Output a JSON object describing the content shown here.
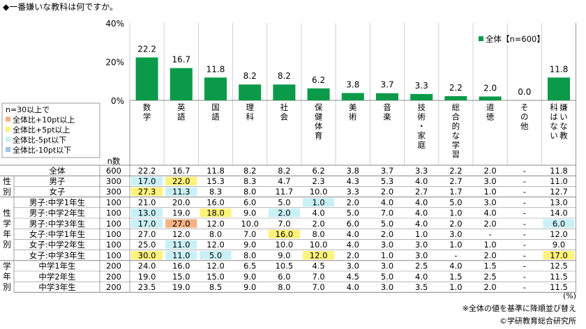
{
  "title": "◆一番嫌いな教科は何ですか。",
  "legend_label": "全体【n=600】",
  "chart_data": {
    "type": "bar",
    "title": "◆一番嫌いな教科は何ですか。",
    "categories": [
      "数学",
      "英語",
      "国語",
      "理科",
      "社会",
      "保健体育",
      "美術",
      "音楽",
      "技術・家庭",
      "総合的な学習",
      "道徳",
      "その他",
      "嫌いな教科はない"
    ],
    "series": [
      {
        "name": "全体【n=600】",
        "values": [
          22.2,
          16.7,
          11.8,
          8.2,
          8.2,
          6.2,
          3.8,
          3.7,
          3.3,
          2.2,
          2.0,
          0.0,
          11.8
        ]
      }
    ],
    "y_ticks": [
      "40%",
      "20%",
      "0%"
    ],
    "ylim": [
      0,
      40
    ],
    "value_labels": [
      "22.2",
      "16.7",
      "11.8",
      "8.2",
      "8.2",
      "6.2",
      "3.8",
      "3.7",
      "3.3",
      "2.2",
      "2.0",
      "0.0",
      "11.8"
    ],
    "color": "#0a9a4a",
    "legend": "top-right",
    "grid": "vertical"
  },
  "legend_box": {
    "items": [
      "n=30以上で",
      "全体比+10pt以上",
      "全体比+5pt以上",
      "全体比-5pt以下",
      "全体比-10pt以下"
    ],
    "colors": [
      "#ffffff",
      "#f4b183",
      "#fff27a",
      "#c8f0f7",
      "#9dc3e6"
    ]
  },
  "n_header": "n数",
  "group_labels": [
    "性別",
    "性学年別",
    "学年別"
  ],
  "table": {
    "rows": [
      {
        "label": "全体",
        "g": -1,
        "n": "600",
        "values": [
          "22.2",
          "16.7",
          "11.8",
          "8.2",
          "8.2",
          "6.2",
          "3.8",
          "3.7",
          "3.3",
          "2.2",
          "2.0",
          "-",
          "11.8"
        ],
        "hl": [
          0,
          0,
          0,
          0,
          0,
          0,
          0,
          0,
          0,
          0,
          0,
          0,
          0
        ]
      },
      {
        "label": "男子",
        "g": 0,
        "n": "300",
        "values": [
          "17.0",
          "22.0",
          "15.3",
          "8.3",
          "4.7",
          "2.3",
          "4.3",
          "5.3",
          "4.0",
          "2.7",
          "3.0",
          "-",
          "11.0"
        ],
        "hl": [
          3,
          2,
          0,
          0,
          0,
          0,
          0,
          0,
          0,
          0,
          0,
          0,
          0
        ]
      },
      {
        "label": "女子",
        "g": 0,
        "n": "300",
        "values": [
          "27.3",
          "11.3",
          "8.3",
          "8.0",
          "11.7",
          "10.0",
          "3.3",
          "2.0",
          "2.7",
          "1.7",
          "1.0",
          "-",
          "12.7"
        ],
        "hl": [
          2,
          3,
          0,
          0,
          0,
          0,
          0,
          0,
          0,
          0,
          0,
          0,
          0
        ]
      },
      {
        "label": "男子:中学1年生",
        "g": 1,
        "n": "100",
        "values": [
          "21.0",
          "20.0",
          "16.0",
          "6.0",
          "5.0",
          "1.0",
          "2.0",
          "4.0",
          "4.0",
          "5.0",
          "3.0",
          "-",
          "13.0"
        ],
        "hl": [
          0,
          0,
          0,
          0,
          0,
          3,
          0,
          0,
          0,
          0,
          0,
          0,
          0
        ]
      },
      {
        "label": "男子:中学2年生",
        "g": 1,
        "n": "100",
        "values": [
          "13.0",
          "19.0",
          "18.0",
          "9.0",
          "2.0",
          "4.0",
          "5.0",
          "7.0",
          "4.0",
          "1.0",
          "4.0",
          "-",
          "14.0"
        ],
        "hl": [
          3,
          0,
          2,
          0,
          3,
          0,
          0,
          0,
          0,
          0,
          0,
          0,
          0
        ]
      },
      {
        "label": "男子:中学3年生",
        "g": 1,
        "n": "100",
        "values": [
          "17.0",
          "27.0",
          "12.0",
          "10.0",
          "7.0",
          "2.0",
          "6.0",
          "5.0",
          "4.0",
          "2.0",
          "2.0",
          "-",
          "6.0"
        ],
        "hl": [
          3,
          1,
          0,
          0,
          0,
          0,
          0,
          0,
          0,
          0,
          0,
          0,
          3
        ]
      },
      {
        "label": "女子:中学1年生",
        "g": 1,
        "n": "100",
        "values": [
          "27.0",
          "12.0",
          "8.0",
          "7.0",
          "16.0",
          "8.0",
          "4.0",
          "2.0",
          "1.0",
          "3.0",
          "-",
          "-",
          "12.0"
        ],
        "hl": [
          0,
          0,
          0,
          0,
          2,
          0,
          0,
          0,
          0,
          0,
          0,
          0,
          0
        ]
      },
      {
        "label": "女子:中学2年生",
        "g": 1,
        "n": "100",
        "values": [
          "25.0",
          "11.0",
          "12.0",
          "9.0",
          "10.0",
          "10.0",
          "4.0",
          "3.0",
          "3.0",
          "1.0",
          "1.0",
          "-",
          "9.0"
        ],
        "hl": [
          0,
          3,
          0,
          0,
          0,
          0,
          0,
          0,
          0,
          0,
          0,
          0,
          0
        ]
      },
      {
        "label": "女子:中学3年生",
        "g": 1,
        "n": "100",
        "values": [
          "30.0",
          "11.0",
          "5.0",
          "8.0",
          "9.0",
          "12.0",
          "2.0",
          "1.0",
          "3.0",
          "-",
          "2.0",
          "-",
          "17.0"
        ],
        "hl": [
          2,
          3,
          3,
          0,
          0,
          2,
          0,
          0,
          0,
          0,
          0,
          0,
          2
        ]
      },
      {
        "label": "中学1年生",
        "g": 2,
        "n": "200",
        "values": [
          "24.0",
          "16.0",
          "12.0",
          "6.5",
          "10.5",
          "4.5",
          "3.0",
          "3.0",
          "2.5",
          "4.0",
          "1.5",
          "-",
          "12.5"
        ],
        "hl": [
          0,
          0,
          0,
          0,
          0,
          0,
          0,
          0,
          0,
          0,
          0,
          0,
          0
        ]
      },
      {
        "label": "中学2年生",
        "g": 2,
        "n": "200",
        "values": [
          "19.0",
          "15.0",
          "15.0",
          "9.0",
          "6.0",
          "7.0",
          "4.5",
          "5.0",
          "4.0",
          "1.5",
          "2.5",
          "-",
          "11.5"
        ],
        "hl": [
          0,
          0,
          0,
          0,
          0,
          0,
          0,
          0,
          0,
          0,
          0,
          0,
          0
        ]
      },
      {
        "label": "中学3年生",
        "g": 2,
        "n": "200",
        "values": [
          "23.5",
          "19.0",
          "8.5",
          "9.0",
          "8.0",
          "7.0",
          "4.0",
          "3.0",
          "3.5",
          "1.0",
          "2.0",
          "-",
          "11.5"
        ],
        "hl": [
          0,
          0,
          0,
          0,
          0,
          0,
          0,
          0,
          0,
          0,
          0,
          0,
          0
        ]
      }
    ]
  },
  "footnotes": [
    "(%)",
    "※全体の値を基準に降順並び替え",
    "©学研教育総合研究所"
  ]
}
